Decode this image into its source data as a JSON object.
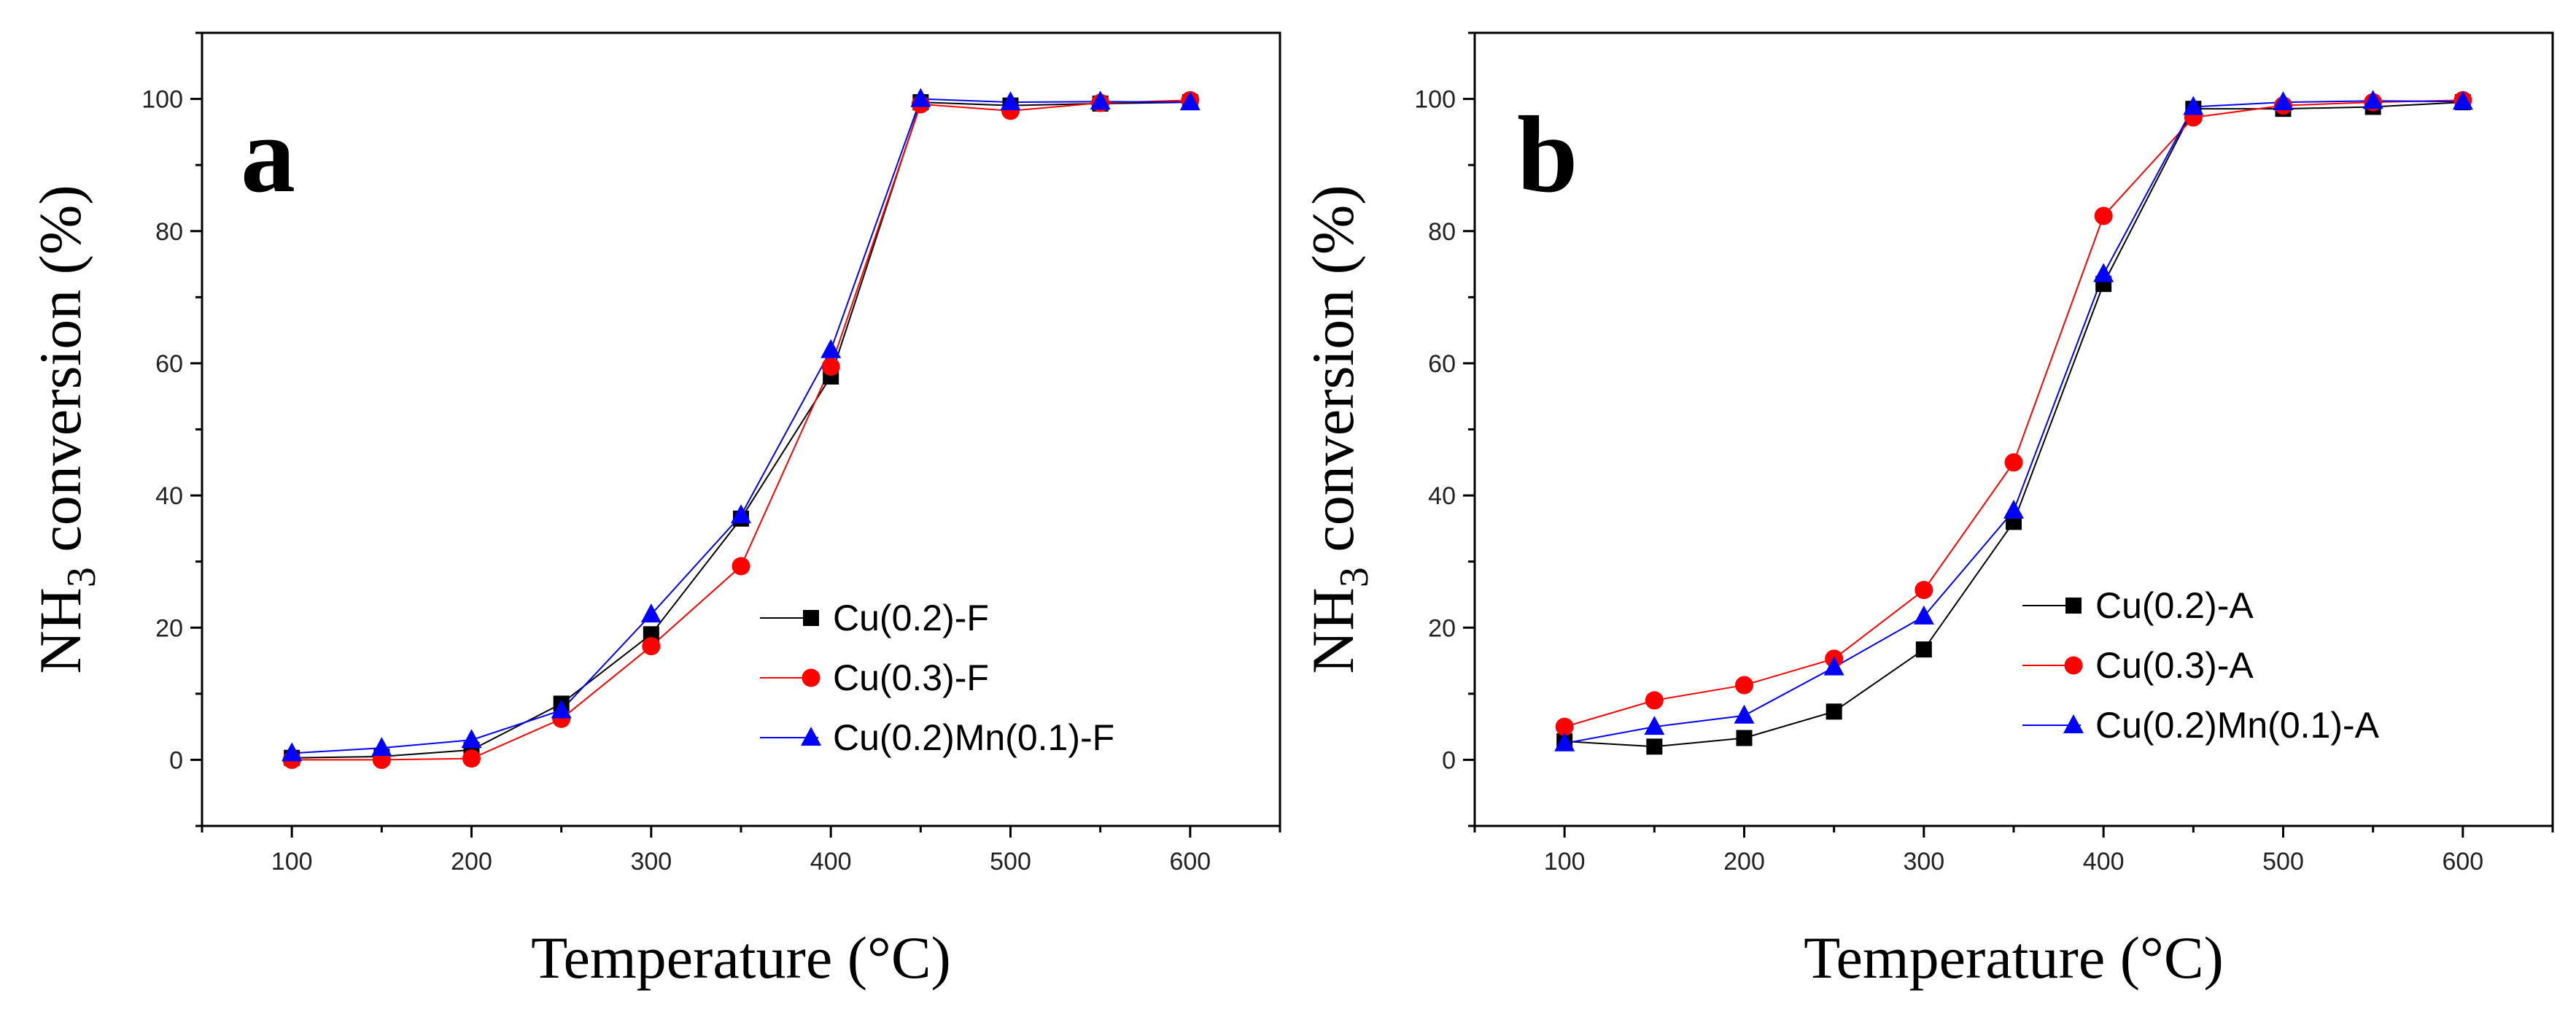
{
  "chart_data": [
    {
      "type": "line",
      "panel_label": "a",
      "xlabel": "Temperature (°C)",
      "ylabel_main": "NH",
      "ylabel_sub": "3",
      "ylabel_rest": " conversion (%)",
      "xlim": [
        50,
        650
      ],
      "ylim": [
        -10,
        110
      ],
      "xticks": [
        100,
        200,
        300,
        400,
        500,
        600
      ],
      "yticks": [
        0,
        20,
        40,
        60,
        80,
        100
      ],
      "legend_position": "center-right",
      "x": [
        100,
        150,
        200,
        250,
        300,
        350,
        400,
        450,
        500,
        550,
        600
      ],
      "series": [
        {
          "name": "Cu(0.2)-F",
          "color": "#000000",
          "marker": "square",
          "values": [
            0.3,
            0.5,
            1.5,
            8.5,
            19,
            36.5,
            58,
            99.5,
            99,
            99.3,
            99.5
          ]
        },
        {
          "name": "Cu(0.3)-F",
          "color": "#ff0000",
          "marker": "circle",
          "values": [
            0,
            0,
            0.2,
            6.2,
            17.2,
            29.3,
            59.5,
            99.2,
            98.2,
            99.4,
            99.8
          ]
        },
        {
          "name": "Cu(0.2)Mn(0.1)-F",
          "color": "#0000ff",
          "marker": "triangle",
          "values": [
            1,
            1.8,
            3,
            7.5,
            22,
            37,
            62,
            100,
            99.5,
            99.6,
            99.5
          ]
        }
      ]
    },
    {
      "type": "line",
      "panel_label": "b",
      "xlabel": "Temperature (°C)",
      "ylabel_main": "NH",
      "ylabel_sub": "3",
      "ylabel_rest": " conversion (%)",
      "xlim": [
        50,
        650
      ],
      "ylim": [
        -10,
        110
      ],
      "xticks": [
        100,
        200,
        300,
        400,
        500,
        600
      ],
      "yticks": [
        0,
        20,
        40,
        60,
        80,
        100
      ],
      "legend_position": "center-right",
      "x": [
        100,
        150,
        200,
        250,
        300,
        350,
        400,
        450,
        500,
        550,
        600
      ],
      "series": [
        {
          "name": "Cu(0.2)-A",
          "color": "#000000",
          "marker": "square",
          "values": [
            2.8,
            2,
            3.3,
            7.3,
            16.7,
            36,
            72,
            98.5,
            98.5,
            98.8,
            99.5
          ]
        },
        {
          "name": "Cu(0.3)-A",
          "color": "#ff0000",
          "marker": "circle",
          "values": [
            5,
            9,
            11.3,
            15.3,
            25.7,
            45,
            82.3,
            97.2,
            99,
            99.5,
            99.8
          ]
        },
        {
          "name": "Cu(0.2)Mn(0.1)-A",
          "color": "#0000ff",
          "marker": "triangle",
          "values": [
            2.5,
            5,
            6.7,
            14,
            21.7,
            37.7,
            73.5,
            98.8,
            99.5,
            99.7,
            99.6
          ]
        }
      ]
    }
  ]
}
